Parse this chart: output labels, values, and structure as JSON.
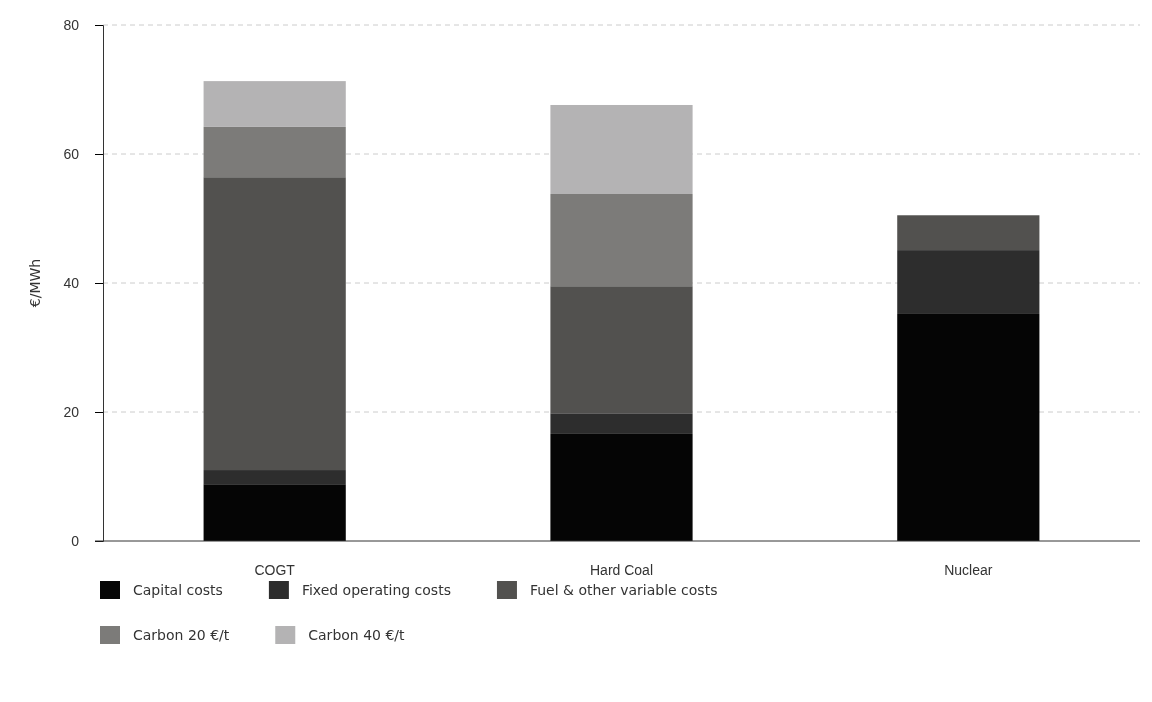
{
  "chart_data": {
    "type": "bar",
    "stacked": true,
    "ylabel": "€/MWh",
    "categories": [
      "COGT",
      "Hard Coal",
      "Nuclear"
    ],
    "ylim": [
      0,
      80
    ],
    "yticks": [
      0,
      20,
      40,
      60,
      80
    ],
    "grid": "y",
    "legend": "bottom",
    "series": [
      {
        "name": "Capital costs",
        "color": "#050505",
        "values": [
          8.8,
          16.6,
          35.2
        ]
      },
      {
        "name": "Fixed operating costs",
        "color": "#2d2d2d",
        "values": [
          2.2,
          3.2,
          9.9
        ]
      },
      {
        "name": "Fuel & other variable costs",
        "color": "#52514f",
        "values": [
          45.4,
          19.7,
          5.4
        ]
      },
      {
        "name": "Carbon 20 €/t",
        "color": "#7c7b79",
        "values": [
          7.8,
          14.3,
          0
        ]
      },
      {
        "name": "Carbon 40 €/t",
        "color": "#b4b3b4",
        "values": [
          7.1,
          13.8,
          0
        ]
      }
    ]
  }
}
